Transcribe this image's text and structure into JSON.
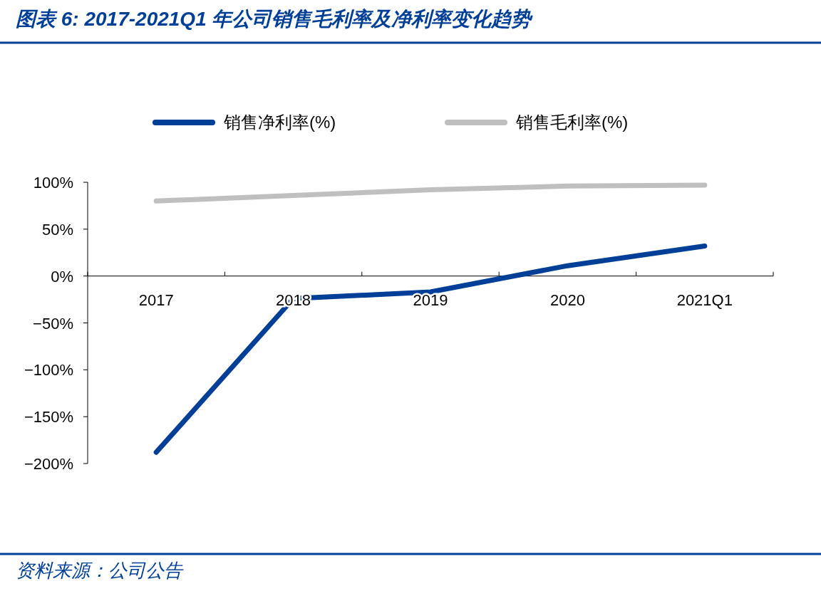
{
  "chart_data": {
    "type": "line",
    "title": "图表 6:  2017-2021Q1 年公司销售毛利率及净利率变化趋势",
    "annotations": [
      "资料来源：公司公告"
    ],
    "categories": [
      "2017",
      "2018",
      "2019",
      "2020",
      "2021Q1"
    ],
    "series": [
      {
        "name": "销售净利率(%)",
        "color": "#003f98",
        "values": [
          -188,
          -24,
          -17,
          11,
          32
        ]
      },
      {
        "name": "销售毛利率(%)",
        "color": "#bfbfbf",
        "values": [
          80,
          86,
          92,
          96,
          97
        ]
      }
    ],
    "ylim": [
      -200,
      100
    ],
    "yticks": [
      {
        "value": 100,
        "label": "100%"
      },
      {
        "value": 50,
        "label": "50%"
      },
      {
        "value": 0,
        "label": "0%"
      },
      {
        "value": -50,
        "label": "−50%"
      },
      {
        "value": -100,
        "label": "−100%"
      },
      {
        "value": -150,
        "label": "−150%"
      },
      {
        "value": -200,
        "label": "−200%"
      }
    ],
    "legend": "top"
  }
}
